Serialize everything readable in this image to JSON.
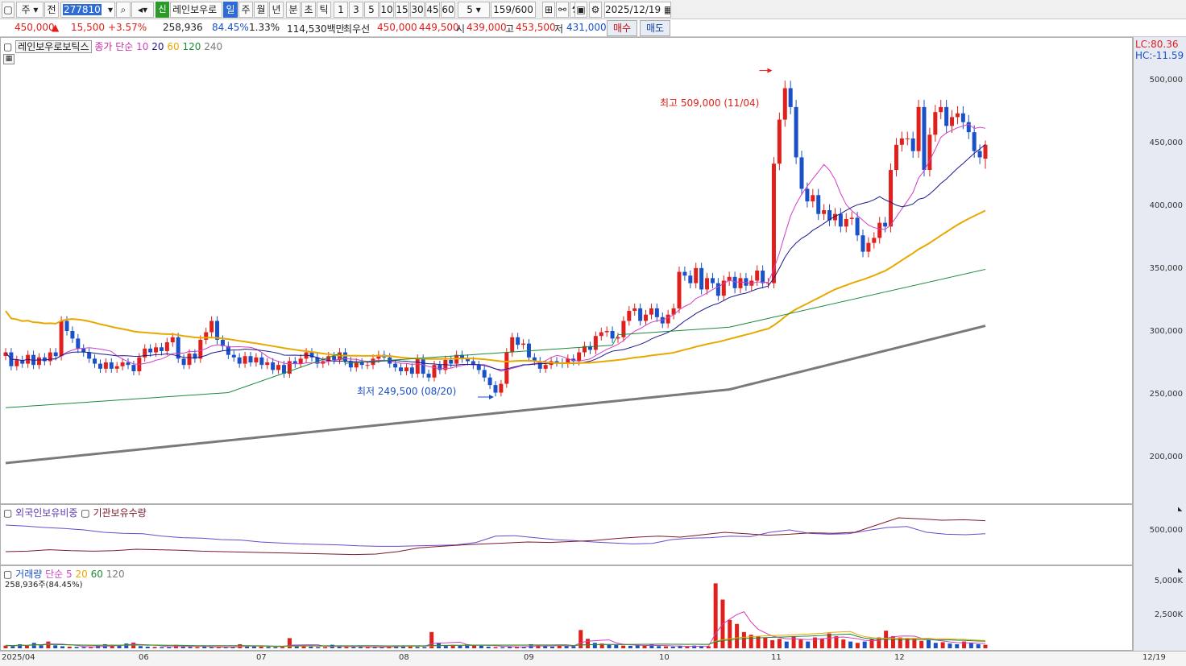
{
  "toolbar": {
    "market_label": "주",
    "prev_label": "전",
    "stock_code": "277810",
    "sin_label": "신",
    "stock_name": "레인보우로",
    "periods": [
      "일",
      "주",
      "월",
      "년",
      "분",
      "초",
      "틱"
    ],
    "active_period": "일",
    "intervals": [
      "1",
      "3",
      "5",
      "10",
      "15",
      "30",
      "45",
      "60"
    ],
    "interval_value": "5",
    "count_value": "159/600",
    "date_value": "2025/12/19"
  },
  "quote": {
    "price": "450,000",
    "change_arrow": "▲",
    "change": "15,500",
    "change_pct": "+3.57%",
    "volume": "258,936",
    "volume_ratio": "84.45%",
    "turnover": "1.33%",
    "amount": "114,530백만",
    "bid_label": "최우선",
    "ask_price": "450,000",
    "bid_price": "449,500",
    "open_label": "시",
    "open_price": "439,000",
    "high_label": "고",
    "high_price": "453,500",
    "low_label": "저",
    "low_price": "431,000",
    "buy_label": "매수",
    "sell_label": "매도"
  },
  "main_panel": {
    "title": "레인보우로보틱스",
    "legend_prefix": "종가 단순",
    "ma_periods": [
      "10",
      "20",
      "60",
      "120",
      "240"
    ],
    "lc": "LC:80.36",
    "hc": "HC:-11.59",
    "high_note": "최고 509,000 (11/04)",
    "low_note": "최저 249,500 (08/20)"
  },
  "holdings_panel": {
    "foreign_label": "외국인보유비중",
    "inst_label": "기관보유수량",
    "tick": "500,000"
  },
  "volume_panel": {
    "title": "거래량",
    "legend_prefix": "단순",
    "ma_periods": [
      "5",
      "20",
      "60",
      "120"
    ],
    "current": "258,936주(84.45%)",
    "ticks": [
      "5,000K",
      "2,500K"
    ]
  },
  "dates": {
    "labels": [
      "2025/04",
      "06",
      "07",
      "08",
      "09",
      "10",
      "11",
      "12"
    ],
    "last": "12/19"
  },
  "colors": {
    "up": "#e0201c",
    "down": "#1a50c8",
    "ma10": "#d23fc4",
    "ma20": "#1a1a8c",
    "ma60": "#e8a800",
    "ma120": "#1e8a3a",
    "ma240": "#7a7a7a",
    "axis_bg": "#e7eaf2"
  },
  "chart_data": {
    "type": "candlestick",
    "y_axis_ticks": [
      500000,
      450000,
      400000,
      350000,
      300000,
      250000,
      200000
    ],
    "ylim": [
      165000,
      535000
    ],
    "x_date_range": [
      "2025/04",
      "2025/12/19"
    ],
    "high": {
      "value": 509000,
      "date": "11/04"
    },
    "low": {
      "value": 249500,
      "date": "08/20"
    },
    "last_candle": {
      "open": 439000,
      "high": 453500,
      "low": 431000,
      "close": 450000
    },
    "close_approx": [
      285000,
      274000,
      279000,
      276000,
      283000,
      275000,
      281000,
      278000,
      285000,
      282000,
      310000,
      302000,
      296000,
      288000,
      285000,
      280000,
      276000,
      272000,
      277000,
      272000,
      274000,
      277000,
      275000,
      270000,
      281000,
      288000,
      285000,
      289000,
      286000,
      293000,
      297000,
      280000,
      275000,
      284000,
      280000,
      295000,
      301000,
      310000,
      295000,
      290000,
      283000,
      281000,
      276000,
      282000,
      277000,
      281000,
      275000,
      277000,
      271000,
      275000,
      268000,
      278000,
      276000,
      280000,
      285000,
      281000,
      276000,
      278000,
      282000,
      279000,
      285000,
      278000,
      273000,
      277000,
      275000,
      275000,
      280000,
      283000,
      281000,
      276000,
      273000,
      270000,
      273000,
      268000,
      280000,
      268000,
      265000,
      275000,
      271000,
      279000,
      276000,
      283000,
      280000,
      278000,
      275000,
      271000,
      265000,
      259000,
      253000,
      260000,
      285000,
      297000,
      291000,
      292000,
      281000,
      278000,
      272000,
      275000,
      278000,
      277000,
      276000,
      280000,
      278000,
      285000,
      290000,
      287000,
      298000,
      301000,
      302000,
      296000,
      297000,
      310000,
      318000,
      320000,
      310000,
      315000,
      320000,
      313000,
      308000,
      315000,
      320000,
      349000,
      346000,
      340000,
      352000,
      335000,
      344000,
      340000,
      330000,
      342000,
      345000,
      336000,
      344000,
      338000,
      342000,
      350000,
      340000,
      340000,
      435000,
      470000,
      495000,
      480000,
      440000,
      415000,
      405000,
      410000,
      395000,
      398000,
      390000,
      395000,
      385000,
      391000,
      392000,
      378000,
      365000,
      372000,
      376000,
      388000,
      385000,
      430000,
      450000,
      455000,
      455000,
      445000,
      480000,
      430000,
      458000,
      476000,
      480000,
      465000,
      472000,
      475000,
      468000,
      460000,
      445000,
      440000,
      450000
    ]
  },
  "holdings_data": {
    "foreign_pct_approx": [
      75,
      73,
      70,
      68,
      65,
      60,
      58,
      57,
      52,
      49,
      48,
      45,
      44,
      40,
      38,
      36,
      35,
      34,
      32,
      31,
      31,
      32,
      33,
      34,
      39,
      52,
      53,
      49,
      45,
      43,
      40,
      38,
      36,
      37,
      45,
      48,
      49,
      52,
      51,
      60,
      65,
      58,
      56,
      57,
      64,
      70,
      72,
      60,
      56,
      55,
      57
    ],
    "inst_qty_approx": [
      20,
      21,
      24,
      22,
      21,
      22,
      25,
      24,
      23,
      21,
      20,
      19,
      18,
      17,
      16,
      15,
      14,
      15,
      20,
      28,
      31,
      34,
      36,
      38,
      40,
      39,
      41,
      43,
      47,
      50,
      52,
      50,
      55,
      60,
      57,
      54,
      56,
      59,
      58,
      60,
      75,
      90,
      88,
      85,
      86,
      84
    ]
  },
  "volume_data": {
    "values_k_approx": [
      200,
      150,
      300,
      180,
      400,
      260,
      500,
      220,
      150,
      120,
      100,
      90,
      80,
      180,
      300,
      250,
      200,
      350,
      420,
      160,
      120,
      100,
      90,
      80,
      250,
      160,
      110,
      90,
      120,
      80,
      70,
      60,
      100,
      300,
      180,
      160,
      120,
      100,
      80,
      90,
      750,
      200,
      160,
      120,
      90,
      80,
      260,
      120,
      100,
      90,
      100,
      80,
      110,
      70,
      150,
      200,
      180,
      140,
      100,
      90,
      1200,
      420,
      200,
      250,
      180,
      300,
      240,
      200,
      120,
      90,
      80,
      150,
      110,
      100,
      300,
      200,
      150,
      120,
      250,
      180,
      160,
      1350,
      700,
      400,
      350,
      300,
      250,
      200,
      180,
      220,
      180,
      300,
      160,
      140,
      120,
      150,
      130,
      200,
      170,
      150,
      4800,
      3600,
      2100,
      1800,
      1200,
      1000,
      900,
      800,
      600,
      700,
      500,
      900,
      650,
      500,
      800,
      700,
      1100,
      900,
      650,
      500,
      400,
      500,
      700,
      800,
      1300,
      900,
      800,
      750,
      700,
      550,
      600,
      400,
      450,
      350,
      300,
      500,
      400,
      300,
      260
    ]
  }
}
